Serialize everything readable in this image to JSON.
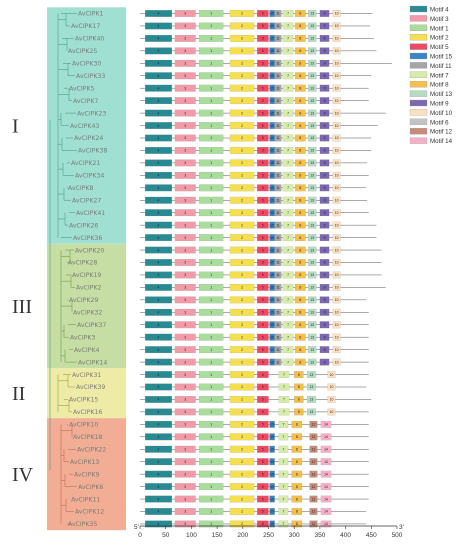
{
  "colors": {
    "groups": {
      "I": "#9fe0d2",
      "III": "#c6dea4",
      "II": "#eeeba6",
      "IV": "#f1ae95"
    },
    "branches": {
      "I": "#4f9c86",
      "III": "#789a4b",
      "II": "#a39d3e",
      "IV": "#c46a55"
    }
  },
  "groups": [
    {
      "label": "I",
      "genes": [
        "AvCIPK1",
        "AvCIPK17",
        "AvCIPK40",
        "AvCIPK25",
        "AvCIPK30",
        "AvCIPK33",
        "AvCIPK5",
        "AvCIPK7",
        "AvCIPK23",
        "AvCIPK43",
        "AvCIPK24",
        "AvCIPK38",
        "AvCIPK21",
        "AvCIPK34",
        "AvCIPK8",
        "AvCIPK27",
        "AvCIPK41",
        "AvCIPK26",
        "AvCIPK36"
      ]
    },
    {
      "label": "III",
      "genes": [
        "AvCIPK20",
        "AvCIPK28",
        "AvCIPK19",
        "AvCIPK2",
        "AvCIPK29",
        "AvCIPK32",
        "AvCIPK37",
        "AvCIPK3",
        "AvCIPK4",
        "AvCIPK14"
      ]
    },
    {
      "label": "II",
      "genes": [
        "AvCIPK31",
        "AvCIPK39",
        "AvCIPK15",
        "AvCIPK16"
      ]
    },
    {
      "label": "IV",
      "genes": [
        "AvCIPK10",
        "AvCIPK18",
        "AvCIPK22",
        "AvCIPK13",
        "AvCIPK9",
        "AvCIPK6",
        "AvCIPK11",
        "AvCIPK12",
        "AvCIPK35"
      ]
    }
  ],
  "axis": {
    "ticks": [
      "0",
      "50",
      "100",
      "150",
      "200",
      "250",
      "300",
      "350",
      "400",
      "450",
      "500"
    ],
    "max": 500,
    "left_end": "5'",
    "right_end": "3'"
  },
  "motifs": [
    {
      "name": "Motif 4",
      "id": 4,
      "color": "#2a8a92"
    },
    {
      "name": "Motif 3",
      "id": 3,
      "color": "#f29aa8"
    },
    {
      "name": "Motif 1",
      "id": 1,
      "color": "#a9dd9b"
    },
    {
      "name": "Motif 2",
      "id": 2,
      "color": "#f6df4e"
    },
    {
      "name": "Motif 5",
      "id": 5,
      "color": "#ec4a63"
    },
    {
      "name": "Motif 15",
      "id": 15,
      "color": "#3c83c4"
    },
    {
      "name": "Motif 11",
      "id": 11,
      "color": "#a5a5a5"
    },
    {
      "name": "Motif 7",
      "id": 7,
      "color": "#d6eca8"
    },
    {
      "name": "Motif 8",
      "id": 8,
      "color": "#f4bf4a"
    },
    {
      "name": "Motif 13",
      "id": 13,
      "color": "#b7dcc4"
    },
    {
      "name": "Motif 9",
      "id": 9,
      "color": "#7b68b0"
    },
    {
      "name": "Motif 10",
      "id": 10,
      "color": "#fbe0c2"
    },
    {
      "name": "Motif 6",
      "id": 6,
      "color": "#c4c4c4"
    },
    {
      "name": "Motif 12",
      "id": 12,
      "color": "#c78b78"
    },
    {
      "name": "Motif 14",
      "id": 14,
      "color": "#f7b0c8"
    }
  ],
  "protein_lengths": {
    "AvCIPK1": 452,
    "AvCIPK17": 448,
    "AvCIPK40": 455,
    "AvCIPK25": 460,
    "AvCIPK30": 490,
    "AvCIPK33": 450,
    "AvCIPK5": 445,
    "AvCIPK7": 445,
    "AvCIPK23": 478,
    "AvCIPK43": 462,
    "AvCIPK24": 450,
    "AvCIPK38": 450,
    "AvCIPK21": 442,
    "AvCIPK34": 445,
    "AvCIPK8": 440,
    "AvCIPK27": 442,
    "AvCIPK41": 445,
    "AvCIPK26": 460,
    "AvCIPK36": 460,
    "AvCIPK20": 470,
    "AvCIPK28": 470,
    "AvCIPK19": 470,
    "AvCIPK2": 478,
    "AvCIPK29": 440,
    "AvCIPK32": 445,
    "AvCIPK37": 445,
    "AvCIPK3": 445,
    "AvCIPK4": 445,
    "AvCIPK14": 445,
    "AvCIPK31": 445,
    "AvCIPK39": 440,
    "AvCIPK15": 450,
    "AvCIPK16": 445,
    "AvCIPK10": 445,
    "AvCIPK18": 445,
    "AvCIPK22": 445,
    "AvCIPK13": 445,
    "AvCIPK9": 445,
    "AvCIPK6": 445,
    "AvCIPK11": 445,
    "AvCIPK12": 440,
    "AvCIPK35": 440
  },
  "motif_sites": {
    "group_I": [
      [
        4,
        10,
        62
      ],
      [
        3,
        68,
        108
      ],
      [
        1,
        115,
        162
      ],
      [
        2,
        175,
        222
      ],
      [
        5,
        228,
        250
      ],
      [
        15,
        252,
        262
      ],
      [
        11,
        262,
        275
      ],
      [
        7,
        278,
        298
      ],
      [
        8,
        302,
        322
      ],
      [
        13,
        327,
        343
      ],
      [
        9,
        350,
        368
      ],
      [
        10,
        375,
        390
      ]
    ],
    "group_III": [
      [
        4,
        10,
        62
      ],
      [
        3,
        68,
        108
      ],
      [
        1,
        115,
        162
      ],
      [
        2,
        175,
        222
      ],
      [
        5,
        228,
        250
      ],
      [
        15,
        252,
        262
      ],
      [
        11,
        262,
        275
      ],
      [
        7,
        278,
        298
      ],
      [
        8,
        302,
        322
      ],
      [
        13,
        327,
        343
      ],
      [
        9,
        350,
        368
      ],
      [
        10,
        375,
        390
      ]
    ],
    "group_II": [
      [
        4,
        10,
        62
      ],
      [
        3,
        68,
        108
      ],
      [
        1,
        115,
        162
      ],
      [
        2,
        175,
        222
      ],
      [
        5,
        228,
        250
      ],
      [
        7,
        270,
        290
      ],
      [
        8,
        300,
        318
      ],
      [
        13,
        325,
        342
      ],
      [
        10,
        365,
        380
      ]
    ],
    "group_IV": [
      [
        4,
        10,
        62
      ],
      [
        3,
        68,
        108
      ],
      [
        1,
        115,
        162
      ],
      [
        2,
        175,
        222
      ],
      [
        5,
        228,
        250
      ],
      [
        15,
        252,
        262
      ],
      [
        7,
        270,
        288
      ],
      [
        8,
        295,
        315
      ],
      [
        12,
        330,
        345
      ],
      [
        14,
        352,
        372
      ]
    ]
  }
}
